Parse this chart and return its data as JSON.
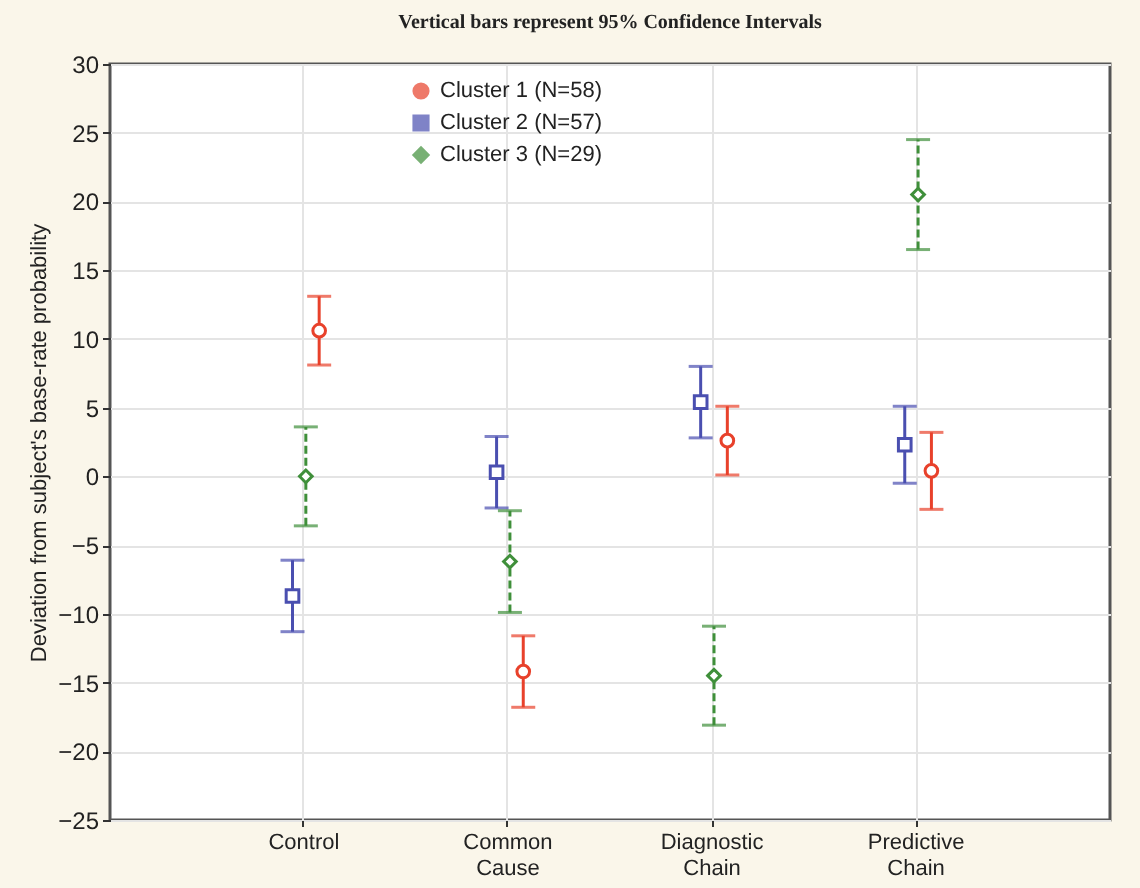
{
  "chart_data": {
    "type": "scatter",
    "title": "Vertical bars represent 95% Confidence Intervals",
    "ylabel": "Deviation from subject's base-rate probability",
    "categories": [
      "Control",
      "Common Cause",
      "Diagnostic Chain",
      "Predictive Chain"
    ],
    "series": [
      {
        "name": "Cluster 1 (N=58)",
        "color": "#e8412b",
        "marker": "circle",
        "line_style": "solid",
        "values": [
          10.6,
          -14.2,
          2.6,
          0.4
        ],
        "errors": [
          2.5,
          2.6,
          2.5,
          2.8
        ]
      },
      {
        "name": "Cluster 2 (N=57)",
        "color": "#4a4fb0",
        "marker": "square",
        "line_style": "solid",
        "values": [
          -8.7,
          0.3,
          5.4,
          2.3
        ],
        "errors": [
          2.6,
          2.6,
          2.6,
          2.8
        ]
      },
      {
        "name": "Cluster 3 (N=29)",
        "color": "#3f8f3a",
        "marker": "diamond",
        "line_style": "dashed",
        "values": [
          0,
          -6.2,
          -14.5,
          20.5
        ],
        "errors": [
          3.6,
          3.7,
          3.6,
          4.0
        ]
      }
    ],
    "ylim": [
      -25,
      30
    ],
    "yticks": [
      -25,
      -20,
      -15,
      -10,
      -5,
      0,
      5,
      10,
      15,
      20,
      25,
      30
    ],
    "grid": true,
    "legend": "top left"
  }
}
